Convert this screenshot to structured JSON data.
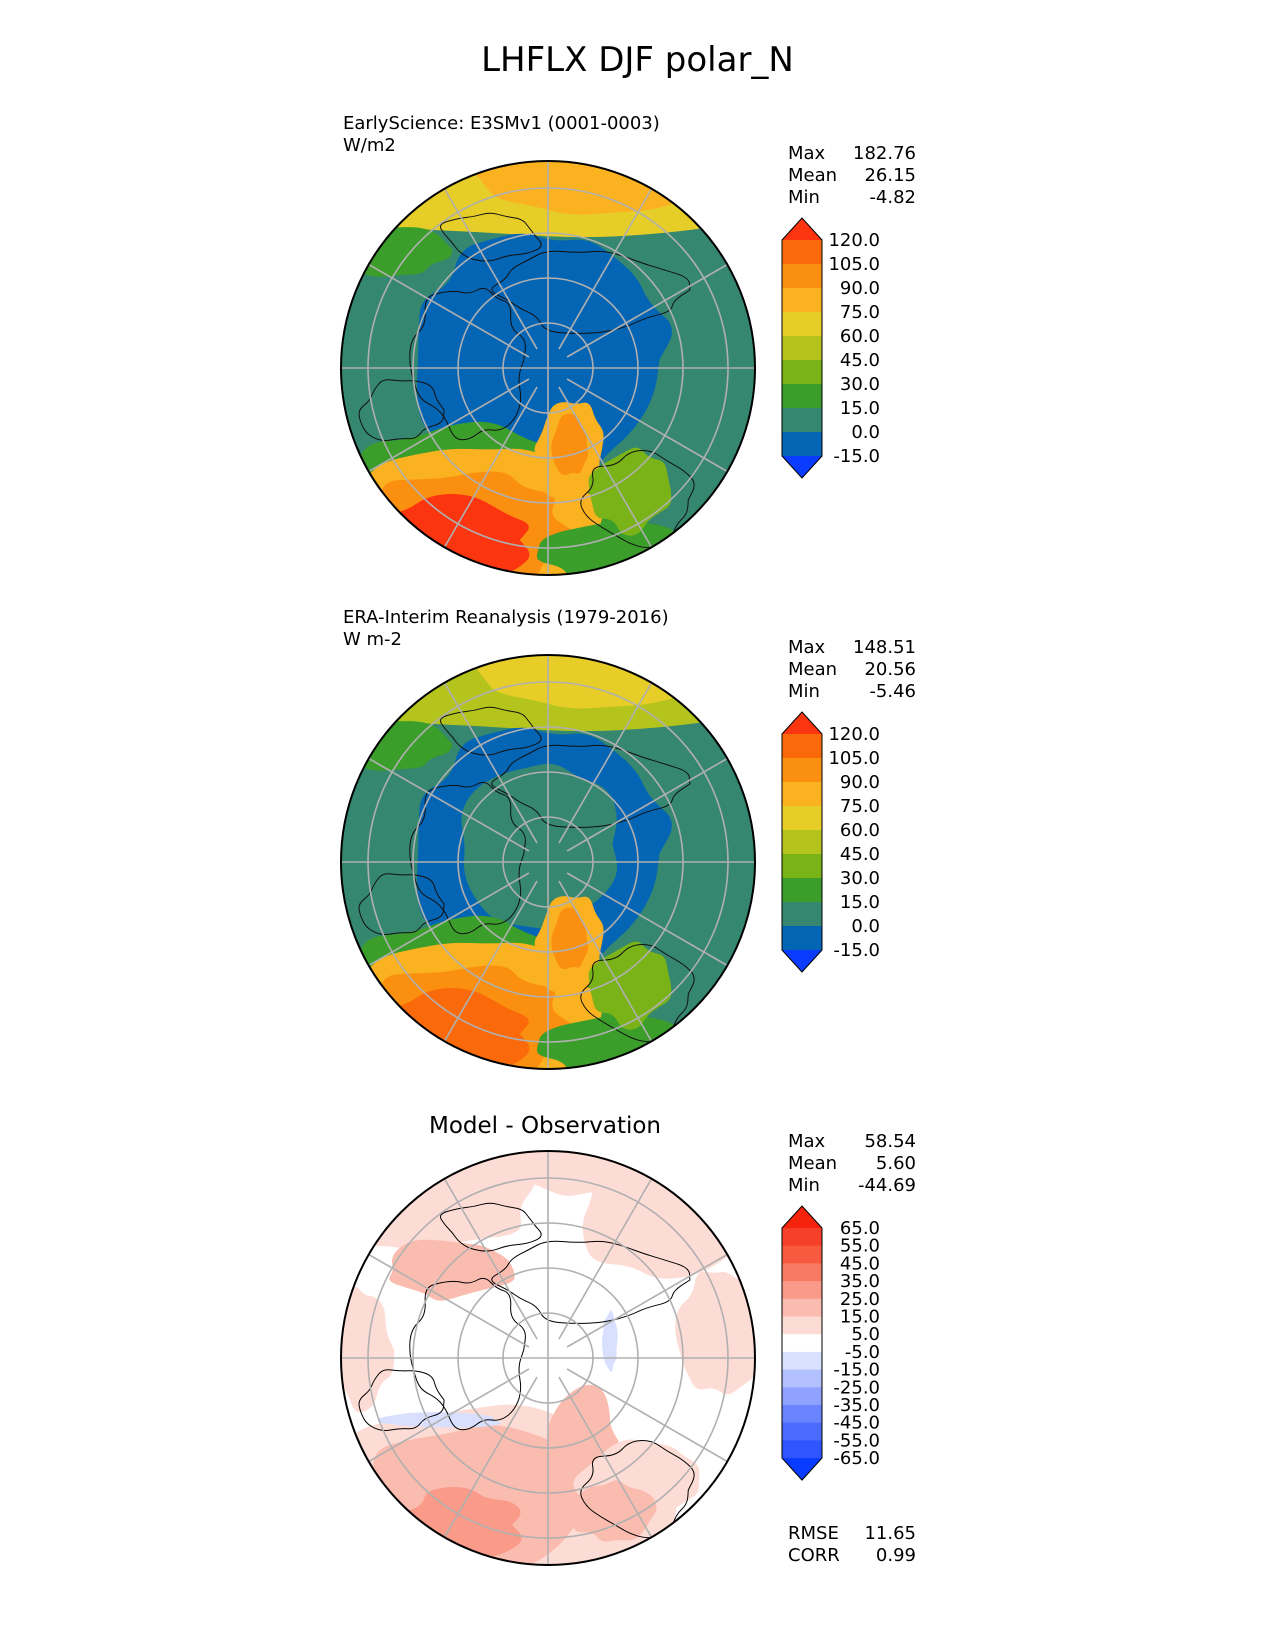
{
  "title": "LHFLX DJF polar_N",
  "chart_data": [
    {
      "type": "heatmap",
      "name": "test",
      "label_line1": "EarlyScience: E3SMv1 (0001-0003)",
      "label_line2": "W/m2",
      "stats": {
        "max_label": "Max",
        "max": "182.76",
        "mean_label": "Mean",
        "mean": "26.15",
        "min_label": "Min",
        "min": "-4.82"
      },
      "colorbar": {
        "levels": [
          "-15.0",
          "0.0",
          "15.0",
          "30.0",
          "45.0",
          "60.0",
          "75.0",
          "90.0",
          "105.0",
          "120.0"
        ],
        "colors": [
          "#0a3cff",
          "#0565b5",
          "#35876f",
          "#3b9e2b",
          "#7ab317",
          "#b4c41c",
          "#e6cd27",
          "#fbb220",
          "#fb8f0f",
          "#fb6a0a",
          "#fb3510"
        ]
      },
      "projection": "north polar stereographic"
    },
    {
      "type": "heatmap",
      "name": "reference",
      "label_line1": "ERA-Interim Reanalysis (1979-2016)",
      "label_line2": "W m-2",
      "stats": {
        "max_label": "Max",
        "max": "148.51",
        "mean_label": "Mean",
        "mean": "20.56",
        "min_label": "Min",
        "min": "-5.46"
      },
      "colorbar": {
        "levels": [
          "-15.0",
          "0.0",
          "15.0",
          "30.0",
          "45.0",
          "60.0",
          "75.0",
          "90.0",
          "105.0",
          "120.0"
        ],
        "colors": [
          "#0a3cff",
          "#0565b5",
          "#35876f",
          "#3b9e2b",
          "#7ab317",
          "#b4c41c",
          "#e6cd27",
          "#fbb220",
          "#fb8f0f",
          "#fb6a0a",
          "#fb3510"
        ]
      },
      "projection": "north polar stereographic"
    },
    {
      "type": "heatmap",
      "name": "difference",
      "title": "Model - Observation",
      "stats": {
        "max_label": "Max",
        "max": "58.54",
        "mean_label": "Mean",
        "mean": "5.60",
        "min_label": "Min",
        "min": "-44.69"
      },
      "colorbar": {
        "levels": [
          "-65.0",
          "-55.0",
          "-45.0",
          "-35.0",
          "-25.0",
          "-15.0",
          "-5.0",
          "5.0",
          "15.0",
          "25.0",
          "35.0",
          "45.0",
          "55.0",
          "65.0"
        ],
        "colors": [
          "#0a3cff",
          "#2f55ff",
          "#4b6bff",
          "#6a84ff",
          "#8fa2ff",
          "#b3c0ff",
          "#d9e0ff",
          "#ffffff",
          "#fddcd6",
          "#fbbcb0",
          "#fa9a88",
          "#f97a62",
          "#f85a40",
          "#f7402a",
          "#f5220c"
        ]
      },
      "metrics": {
        "rmse_label": "RMSE",
        "rmse": "11.65",
        "corr_label": "CORR",
        "corr": "0.99"
      },
      "projection": "north polar stereographic"
    }
  ]
}
